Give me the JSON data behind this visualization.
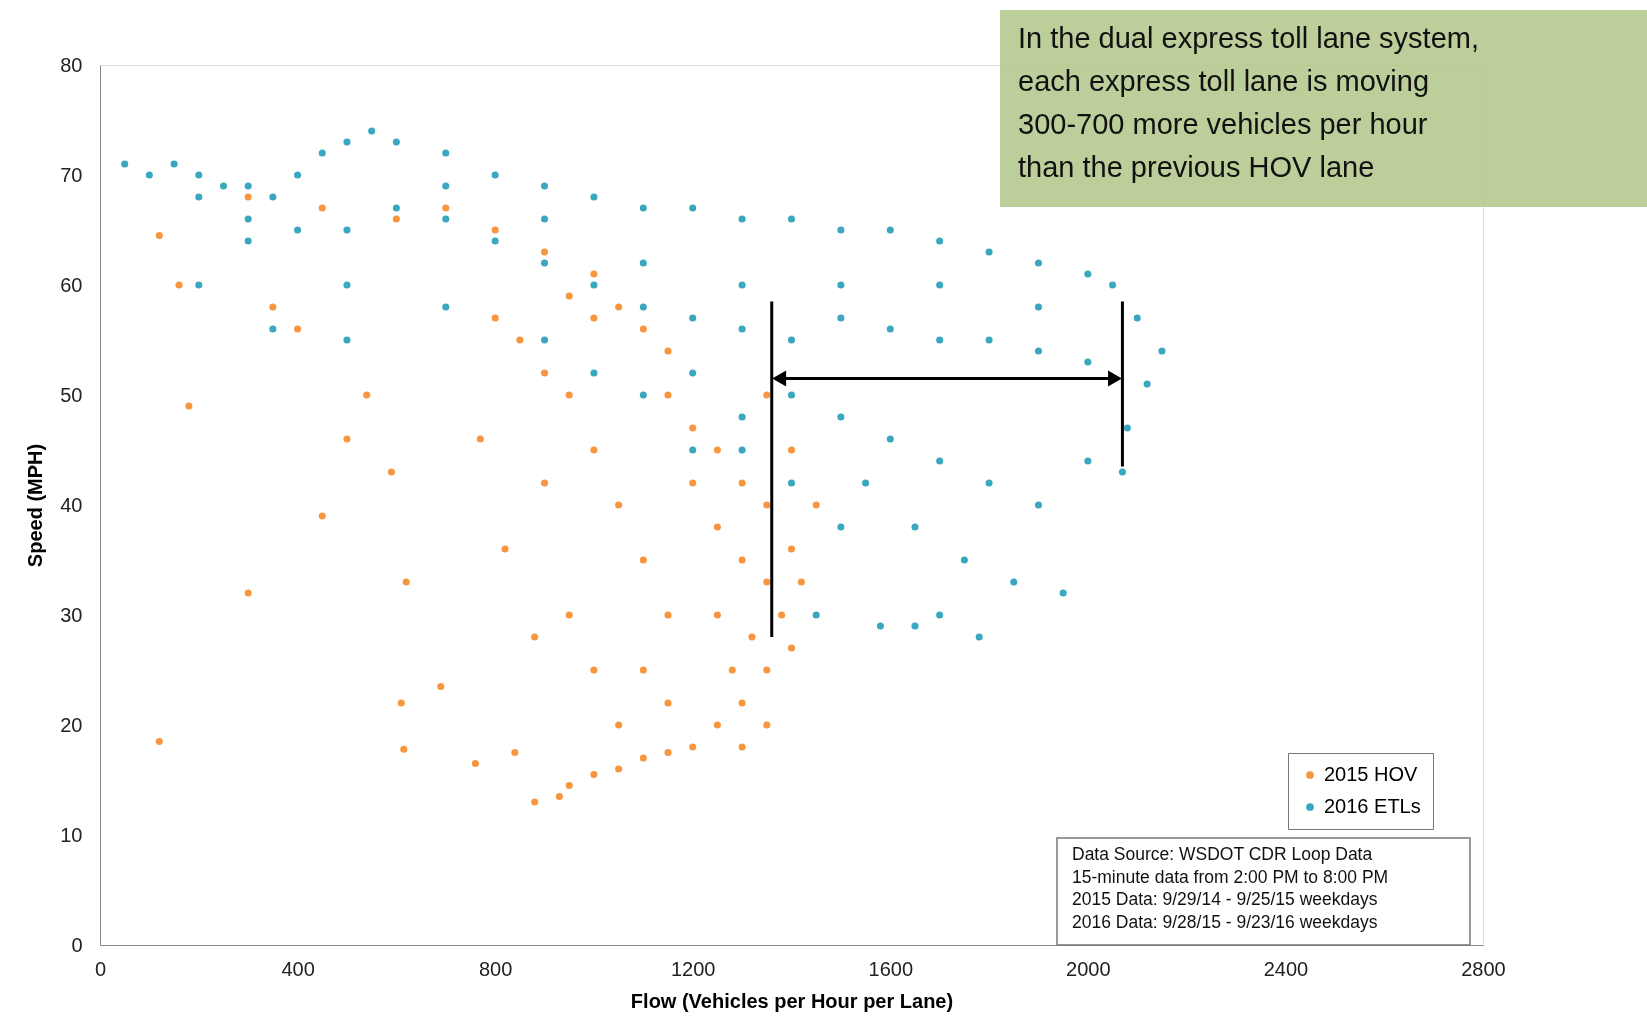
{
  "chart_data": {
    "type": "scatter",
    "xlabel": "Flow (Vehicles per Hour per Lane)",
    "ylabel": "Speed (MPH)",
    "xlim": [
      0,
      2800
    ],
    "ylim": [
      0,
      80
    ],
    "xticks": [
      0,
      400,
      800,
      1200,
      1600,
      2000,
      2400,
      2800
    ],
    "yticks": [
      0,
      10,
      20,
      30,
      40,
      50,
      60,
      70,
      80
    ],
    "grid": false,
    "legend": "bottom right",
    "marker": "circle",
    "series": [
      {
        "name": "2015 HOV",
        "color": "#f7963e",
        "x": [
          300,
          450,
          600,
          700,
          800,
          900,
          1000,
          1050,
          1100,
          1150,
          1000,
          950,
          1150,
          1200,
          1250,
          1300,
          1350,
          1200,
          1250,
          1300,
          1350,
          1400,
          1380,
          1320,
          1280,
          1300,
          1250,
          1200,
          1150,
          1100,
          1050,
          1000,
          950,
          930,
          1350,
          1400,
          1250,
          1150,
          1100,
          1050,
          1000,
          950,
          900,
          850,
          800,
          1100,
          1050,
          1150,
          1350,
          1300,
          1400,
          1450,
          1420,
          1350,
          120,
          160,
          180,
          300,
          450,
          500,
          540,
          590,
          610,
          615,
          690,
          760,
          840,
          880,
          770,
          820,
          900,
          950,
          1000,
          880,
          620,
          120,
          400,
          350
        ],
        "values": [
          68,
          67,
          66,
          67,
          65,
          63,
          61,
          58,
          56,
          54,
          57,
          59,
          50,
          47,
          45,
          42,
          40,
          42,
          38,
          35,
          33,
          36,
          30,
          28,
          25,
          22,
          20,
          18,
          17.5,
          17,
          16,
          15.5,
          14.5,
          13.5,
          25,
          27,
          30,
          30,
          35,
          40,
          45,
          50,
          52,
          55,
          57,
          25,
          20,
          22,
          20,
          18,
          45,
          40,
          33,
          50,
          64.5,
          60,
          49,
          32,
          39,
          46,
          50,
          43,
          22,
          17.8,
          23.5,
          16.5,
          17.5,
          13,
          46,
          36,
          42,
          30,
          25,
          28,
          33,
          18.5,
          56,
          58
        ]
      },
      {
        "name": "2016 ETLs",
        "color": "#3aa7c0",
        "x": [
          50,
          100,
          150,
          200,
          250,
          300,
          350,
          400,
          450,
          500,
          550,
          600,
          700,
          800,
          900,
          1000,
          1100,
          1200,
          1300,
          1400,
          1500,
          1600,
          1700,
          1800,
          1900,
          2000,
          2050,
          2100,
          2150,
          2120,
          2080,
          2070,
          200,
          300,
          400,
          500,
          600,
          700,
          800,
          900,
          1000,
          1100,
          1200,
          1300,
          1400,
          1500,
          1600,
          1700,
          1800,
          1900,
          2000,
          1300,
          1500,
          1700,
          1900,
          1100,
          900,
          700,
          300,
          500,
          700,
          900,
          1000,
          1100,
          1200,
          1300,
          1400,
          1500,
          1600,
          1700,
          1800,
          1900,
          2000,
          1550,
          1650,
          1750,
          1850,
          1950,
          1780,
          1580,
          1650,
          1450,
          1300,
          1200,
          1400,
          200,
          350,
          500,
          1500,
          1700
        ],
        "values": [
          71,
          70,
          71,
          70,
          69,
          69,
          68,
          70,
          72,
          73,
          74,
          73,
          72,
          70,
          69,
          68,
          67,
          67,
          66,
          66,
          65,
          65,
          64,
          63,
          62,
          61,
          60,
          57,
          54,
          51,
          47,
          43,
          68,
          66,
          65,
          65,
          67,
          66,
          64,
          62,
          60,
          58,
          57,
          56,
          55,
          57,
          56,
          55,
          55,
          54,
          53,
          60,
          60,
          60,
          58,
          62,
          66,
          69,
          64,
          60,
          58,
          55,
          52,
          50,
          52,
          48,
          50,
          48,
          46,
          44,
          42,
          40,
          44,
          42,
          38,
          35,
          33,
          32,
          28,
          29,
          29,
          30,
          45,
          45,
          42,
          60,
          56,
          55,
          38,
          30
        ]
      }
    ],
    "annotations": [
      "In the dual express toll lane system,\neach express toll lane is moving\n300-700 more vehicles per hour\nthan the previous HOV lane",
      "Data Source: WSDOT CDR Loop Data\n15-minute data from 2:00 PM to 8:00 PM\n2015 Data: 9/29/14 - 9/25/15 weekdays\n2016 Data: 9/28/15 - 9/23/16 weekdays"
    ]
  }
}
